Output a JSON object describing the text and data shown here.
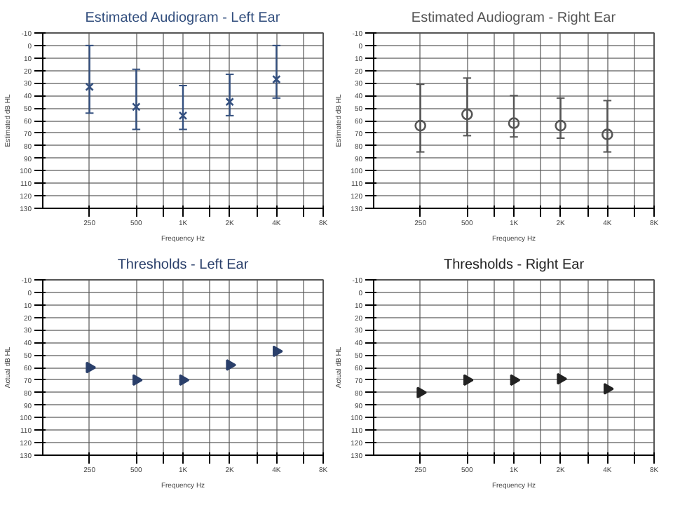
{
  "chart_data": [
    {
      "type": "scatter",
      "title": "Estimated Audiogram - Left Ear",
      "xlabel": "Frequency Hz",
      "ylabel": "Estimated dB HL",
      "log": "x",
      "grid": true,
      "marker": "cross",
      "xlim": [
        125,
        8000
      ],
      "ylim": [
        130,
        -10
      ],
      "xticks": [
        {
          "value": 250,
          "label": "250"
        },
        {
          "value": 500,
          "label": "500"
        },
        {
          "value": 750,
          "label": null
        },
        {
          "value": 1000,
          "label": "1K"
        },
        {
          "value": 1500,
          "label": null
        },
        {
          "value": 2000,
          "label": "2K"
        },
        {
          "value": 3000,
          "label": null
        },
        {
          "value": 4000,
          "label": "4K"
        },
        {
          "value": 6000,
          "label": null
        },
        {
          "value": 8000,
          "label": "8K"
        }
      ],
      "yticks": [
        -10,
        0,
        10,
        20,
        30,
        40,
        50,
        60,
        70,
        80,
        90,
        100,
        110,
        120,
        130
      ],
      "x": [
        250,
        500,
        1000,
        2000,
        4000
      ],
      "series": [
        {
          "color": "#34507f",
          "values": [
            33,
            49,
            56,
            45,
            27
          ],
          "errors": [
            [
              0,
              54
            ],
            [
              19,
              67
            ],
            [
              32,
              67
            ],
            [
              23,
              56
            ],
            [
              0,
              42
            ]
          ]
        }
      ]
    },
    {
      "type": "scatter",
      "title": "Estimated Audiogram - Right Ear",
      "xlabel": "Frequency Hz",
      "ylabel": "Estimated dB HL",
      "log": "x",
      "grid": true,
      "marker": "circle",
      "xlim": [
        125,
        8000
      ],
      "ylim": [
        130,
        -10
      ],
      "xticks": [
        {
          "value": 250,
          "label": "250"
        },
        {
          "value": 500,
          "label": "500"
        },
        {
          "value": 750,
          "label": null
        },
        {
          "value": 1000,
          "label": "1K"
        },
        {
          "value": 1500,
          "label": null
        },
        {
          "value": 2000,
          "label": "2K"
        },
        {
          "value": 3000,
          "label": null
        },
        {
          "value": 4000,
          "label": "4K"
        },
        {
          "value": 6000,
          "label": null
        },
        {
          "value": 8000,
          "label": "8K"
        }
      ],
      "yticks": [
        -10,
        0,
        10,
        20,
        30,
        40,
        50,
        60,
        70,
        80,
        90,
        100,
        110,
        120,
        130
      ],
      "x": [
        250,
        500,
        1000,
        2000,
        4000
      ],
      "series": [
        {
          "color": "#555555",
          "values": [
            64,
            55,
            62,
            64,
            71
          ],
          "errors": [
            [
              31,
              85
            ],
            [
              26,
              72
            ],
            [
              40,
              73
            ],
            [
              42,
              74
            ],
            [
              44,
              85
            ]
          ]
        }
      ]
    },
    {
      "type": "scatter",
      "title": "Thresholds - Left Ear",
      "xlabel": "Frequency Hz",
      "ylabel": "Actual dB HL",
      "log": "x",
      "grid": true,
      "marker": "triangle",
      "xlim": [
        125,
        8000
      ],
      "ylim": [
        130,
        -10
      ],
      "xticks": [
        {
          "value": 250,
          "label": "250"
        },
        {
          "value": 500,
          "label": "500"
        },
        {
          "value": 750,
          "label": null
        },
        {
          "value": 1000,
          "label": "1K"
        },
        {
          "value": 1500,
          "label": null
        },
        {
          "value": 2000,
          "label": "2K"
        },
        {
          "value": 3000,
          "label": null
        },
        {
          "value": 4000,
          "label": "4K"
        },
        {
          "value": 6000,
          "label": null
        },
        {
          "value": 8000,
          "label": "8K"
        }
      ],
      "yticks": [
        -10,
        0,
        10,
        20,
        30,
        40,
        50,
        60,
        70,
        80,
        90,
        100,
        110,
        120,
        130
      ],
      "x": [
        250,
        500,
        1000,
        2000,
        4000
      ],
      "series": [
        {
          "color": "#2a3f6a",
          "values": [
            60,
            70,
            70,
            58,
            47
          ]
        }
      ]
    },
    {
      "type": "scatter",
      "title": "Thresholds - Right Ear",
      "xlabel": "Frequency Hz",
      "ylabel": "Actual dB HL",
      "log": "x",
      "grid": true,
      "marker": "triangle",
      "xlim": [
        125,
        8000
      ],
      "ylim": [
        130,
        -10
      ],
      "xticks": [
        {
          "value": 250,
          "label": "250"
        },
        {
          "value": 500,
          "label": "500"
        },
        {
          "value": 750,
          "label": null
        },
        {
          "value": 1000,
          "label": "1K"
        },
        {
          "value": 1500,
          "label": null
        },
        {
          "value": 2000,
          "label": "2K"
        },
        {
          "value": 3000,
          "label": null
        },
        {
          "value": 4000,
          "label": "4K"
        },
        {
          "value": 6000,
          "label": null
        },
        {
          "value": 8000,
          "label": "8K"
        }
      ],
      "yticks": [
        -10,
        0,
        10,
        20,
        30,
        40,
        50,
        60,
        70,
        80,
        90,
        100,
        110,
        120,
        130
      ],
      "x": [
        250,
        500,
        1000,
        2000,
        4000
      ],
      "series": [
        {
          "color": "#222222",
          "values": [
            80,
            70,
            70,
            69,
            77
          ]
        }
      ]
    }
  ]
}
